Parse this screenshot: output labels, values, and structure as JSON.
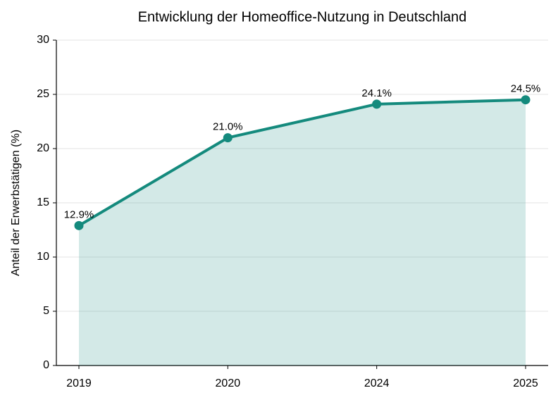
{
  "chart_data": {
    "type": "line",
    "title": "Entwicklung der Homeoffice-Nutzung in Deutschland",
    "y_label": "Anteil der Erwerbstätigen (%)",
    "categories": [
      "2019",
      "2020",
      "2024",
      "2025"
    ],
    "values": [
      12.9,
      21.0,
      24.1,
      24.5
    ],
    "value_labels": [
      "12.9%",
      "21.0%",
      "24.1%",
      "24.5%"
    ],
    "color": "#148a7d",
    "area": true,
    "ylim": [
      0,
      30
    ],
    "yticks": [
      0,
      5,
      10,
      15,
      20,
      25,
      30
    ],
    "grid": true
  }
}
